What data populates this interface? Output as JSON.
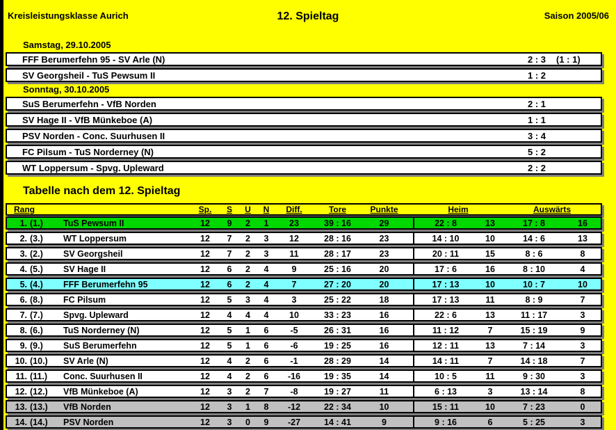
{
  "window": {
    "background": "#FFFF00",
    "edge_color": "#000000"
  },
  "header": {
    "league": "Kreisleistungsklasse Aurich",
    "title": "12. Spieltag",
    "season": "Saison 2005/06"
  },
  "results": {
    "groups": [
      {
        "date": "Samstag, 29.10.2005",
        "matches": [
          {
            "pairing": "FFF Berumerfehn 95 - SV Arle (N)",
            "score": "2 : 3",
            "halftime": "(1 : 1)"
          },
          {
            "pairing": "SV Georgsheil - TuS Pewsum II",
            "score": "1 : 2",
            "halftime": ""
          }
        ]
      },
      {
        "date": "Sonntag, 30.10.2005",
        "matches": [
          {
            "pairing": "SuS Berumerfehn - VfB Norden",
            "score": "2 : 1",
            "halftime": ""
          },
          {
            "pairing": "SV Hage II - VfB Münkeboe (A)",
            "score": "1 : 1",
            "halftime": ""
          },
          {
            "pairing": "PSV Norden - Conc. Suurhusen II",
            "score": "3 : 4",
            "halftime": ""
          },
          {
            "pairing": "FC Pilsum - TuS Norderney (N)",
            "score": "5 : 2",
            "halftime": ""
          },
          {
            "pairing": "WT Loppersum - Spvg. Upleward",
            "score": "2 : 2",
            "halftime": ""
          }
        ]
      }
    ]
  },
  "table": {
    "title": "Tabelle nach dem 12. Spieltag",
    "header": {
      "rang": "Rang",
      "sp": "Sp.",
      "s": "S",
      "u": "U",
      "n": "N",
      "diff": "Diff.",
      "tore": "Tore",
      "punkte": "Punkte",
      "heim": "Heim",
      "auswaerts": "Auswärts"
    },
    "row_colors": {
      "first_place": "#00D800",
      "own_team": "#7FFFFF",
      "relegation": "#C0C0C0",
      "default": "#FFFFFF"
    },
    "rows": [
      {
        "rank": "1.",
        "prev": "(1.)",
        "team": "TuS Pewsum II",
        "sp": "12",
        "s": "9",
        "u": "2",
        "n": "1",
        "diff": "23",
        "tore": "39 : 16",
        "punkte": "29",
        "heim_tore": "22 : 8",
        "heim_punkte": "13",
        "ausw_tore": "17 : 8",
        "ausw_punkte": "16",
        "color": "first_place"
      },
      {
        "rank": "2.",
        "prev": "(3.)",
        "team": "WT Loppersum",
        "sp": "12",
        "s": "7",
        "u": "2",
        "n": "3",
        "diff": "12",
        "tore": "28 : 16",
        "punkte": "23",
        "heim_tore": "14 : 10",
        "heim_punkte": "10",
        "ausw_tore": "14 : 6",
        "ausw_punkte": "13",
        "color": "default"
      },
      {
        "rank": "3.",
        "prev": "(2.)",
        "team": "SV Georgsheil",
        "sp": "12",
        "s": "7",
        "u": "2",
        "n": "3",
        "diff": "11",
        "tore": "28 : 17",
        "punkte": "23",
        "heim_tore": "20 : 11",
        "heim_punkte": "15",
        "ausw_tore": "8 : 6",
        "ausw_punkte": "8",
        "color": "default"
      },
      {
        "rank": "4.",
        "prev": "(5.)",
        "team": "SV Hage II",
        "sp": "12",
        "s": "6",
        "u": "2",
        "n": "4",
        "diff": "9",
        "tore": "25 : 16",
        "punkte": "20",
        "heim_tore": "17 : 6",
        "heim_punkte": "16",
        "ausw_tore": "8 : 10",
        "ausw_punkte": "4",
        "color": "default"
      },
      {
        "rank": "5.",
        "prev": "(4.)",
        "team": "FFF Berumerfehn 95",
        "sp": "12",
        "s": "6",
        "u": "2",
        "n": "4",
        "diff": "7",
        "tore": "27 : 20",
        "punkte": "20",
        "heim_tore": "17 : 13",
        "heim_punkte": "10",
        "ausw_tore": "10 : 7",
        "ausw_punkte": "10",
        "color": "own_team"
      },
      {
        "rank": "6.",
        "prev": "(8.)",
        "team": "FC Pilsum",
        "sp": "12",
        "s": "5",
        "u": "3",
        "n": "4",
        "diff": "3",
        "tore": "25 : 22",
        "punkte": "18",
        "heim_tore": "17 : 13",
        "heim_punkte": "11",
        "ausw_tore": "8 : 9",
        "ausw_punkte": "7",
        "color": "default"
      },
      {
        "rank": "7.",
        "prev": "(7.)",
        "team": "Spvg. Upleward",
        "sp": "12",
        "s": "4",
        "u": "4",
        "n": "4",
        "diff": "10",
        "tore": "33 : 23",
        "punkte": "16",
        "heim_tore": "22 : 6",
        "heim_punkte": "13",
        "ausw_tore": "11 : 17",
        "ausw_punkte": "3",
        "color": "default"
      },
      {
        "rank": "8.",
        "prev": "(6.)",
        "team": "TuS Norderney (N)",
        "sp": "12",
        "s": "5",
        "u": "1",
        "n": "6",
        "diff": "-5",
        "tore": "26 : 31",
        "punkte": "16",
        "heim_tore": "11 : 12",
        "heim_punkte": "7",
        "ausw_tore": "15 : 19",
        "ausw_punkte": "9",
        "color": "default"
      },
      {
        "rank": "9.",
        "prev": "(9.)",
        "team": "SuS Berumerfehn",
        "sp": "12",
        "s": "5",
        "u": "1",
        "n": "6",
        "diff": "-6",
        "tore": "19 : 25",
        "punkte": "16",
        "heim_tore": "12 : 11",
        "heim_punkte": "13",
        "ausw_tore": "7 : 14",
        "ausw_punkte": "3",
        "color": "default"
      },
      {
        "rank": "10.",
        "prev": "(10.)",
        "team": "SV Arle (N)",
        "sp": "12",
        "s": "4",
        "u": "2",
        "n": "6",
        "diff": "-1",
        "tore": "28 : 29",
        "punkte": "14",
        "heim_tore": "14 : 11",
        "heim_punkte": "7",
        "ausw_tore": "14 : 18",
        "ausw_punkte": "7",
        "color": "default"
      },
      {
        "rank": "11.",
        "prev": "(11.)",
        "team": "Conc. Suurhusen II",
        "sp": "12",
        "s": "4",
        "u": "2",
        "n": "6",
        "diff": "-16",
        "tore": "19 : 35",
        "punkte": "14",
        "heim_tore": "10 : 5",
        "heim_punkte": "11",
        "ausw_tore": "9 : 30",
        "ausw_punkte": "3",
        "color": "default"
      },
      {
        "rank": "12.",
        "prev": "(12.)",
        "team": "VfB Münkeboe (A)",
        "sp": "12",
        "s": "3",
        "u": "2",
        "n": "7",
        "diff": "-8",
        "tore": "19 : 27",
        "punkte": "11",
        "heim_tore": "6 : 13",
        "heim_punkte": "3",
        "ausw_tore": "13 : 14",
        "ausw_punkte": "8",
        "color": "default"
      },
      {
        "rank": "13.",
        "prev": "(13.)",
        "team": "VfB Norden",
        "sp": "12",
        "s": "3",
        "u": "1",
        "n": "8",
        "diff": "-12",
        "tore": "22 : 34",
        "punkte": "10",
        "heim_tore": "15 : 11",
        "heim_punkte": "10",
        "ausw_tore": "7 : 23",
        "ausw_punkte": "0",
        "color": "relegation"
      },
      {
        "rank": "14.",
        "prev": "(14.)",
        "team": "PSV Norden",
        "sp": "12",
        "s": "3",
        "u": "0",
        "n": "9",
        "diff": "-27",
        "tore": "14 : 41",
        "punkte": "9",
        "heim_tore": "9 : 16",
        "heim_punkte": "6",
        "ausw_tore": "5 : 25",
        "ausw_punkte": "3",
        "color": "relegation"
      }
    ]
  }
}
